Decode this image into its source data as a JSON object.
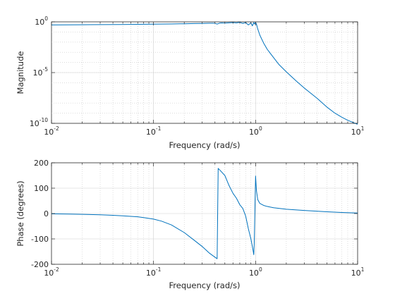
{
  "chart_data": [
    {
      "type": "line",
      "xlabel": "Frequency (rad/s)",
      "ylabel": "Magnitude",
      "xscale": "log",
      "yscale": "log",
      "xlim": [
        0.01,
        10
      ],
      "ylim": [
        1e-10,
        1
      ],
      "xticks": [
        {
          "base": "10",
          "exp": "-2"
        },
        {
          "base": "10",
          "exp": "-1"
        },
        {
          "base": "10",
          "exp": "0"
        },
        {
          "base": "10",
          "exp": "1"
        }
      ],
      "yticks": [
        {
          "base": "10",
          "exp": "-10"
        },
        {
          "base": "10",
          "exp": "-5"
        },
        {
          "base": "10",
          "exp": "0"
        }
      ],
      "ytick_values": [
        1e-10,
        1e-05,
        1
      ],
      "grid": true,
      "color": "#0072bd",
      "series": [
        {
          "x": [
            0.01,
            0.02,
            0.05,
            0.1,
            0.15,
            0.2,
            0.25,
            0.3,
            0.35,
            0.4,
            0.42,
            0.44,
            0.46,
            0.5,
            0.55,
            0.6,
            0.65,
            0.7,
            0.75,
            0.8,
            0.85,
            0.9,
            0.93,
            0.96,
            0.98,
            1.0,
            1.02,
            1.05,
            1.1,
            1.2,
            1.3,
            1.5,
            1.7,
            2,
            2.5,
            3,
            4,
            5,
            6,
            7,
            8,
            10
          ],
          "y": [
            0.5,
            0.52,
            0.55,
            0.6,
            0.62,
            0.65,
            0.68,
            0.7,
            0.72,
            0.72,
            0.6,
            0.72,
            0.78,
            0.75,
            0.8,
            0.85,
            0.78,
            0.9,
            0.7,
            0.85,
            0.5,
            0.8,
            0.4,
            0.85,
            0.6,
            0.9,
            0.6,
            0.2,
            0.05,
            0.008,
            0.002,
            0.0003,
            6e-05,
            1.2e-05,
            1.5e-06,
            3e-07,
            3e-08,
            4e-09,
            1e-09,
            4e-10,
            2e-10,
            8e-11
          ]
        }
      ]
    },
    {
      "type": "line",
      "xlabel": "Frequency (rad/s)",
      "ylabel": "Phase (degrees)",
      "xscale": "log",
      "xlim": [
        0.01,
        10
      ],
      "ylim": [
        -200,
        200
      ],
      "xticks": [
        {
          "base": "10",
          "exp": "-2"
        },
        {
          "base": "10",
          "exp": "-1"
        },
        {
          "base": "10",
          "exp": "0"
        },
        {
          "base": "10",
          "exp": "1"
        }
      ],
      "yticks": [
        "-200",
        "-100",
        "0",
        "100",
        "200"
      ],
      "ytick_values": [
        -200,
        -100,
        0,
        100,
        200
      ],
      "grid": true,
      "color": "#0072bd",
      "series": [
        {
          "x": [
            0.01,
            0.015,
            0.02,
            0.03,
            0.04,
            0.05,
            0.06,
            0.07,
            0.08,
            0.1,
            0.12,
            0.15,
            0.2,
            0.25,
            0.3,
            0.35,
            0.4,
            0.42,
            0.425,
            0.43,
            0.45,
            0.5,
            0.55,
            0.6,
            0.65,
            0.7,
            0.75,
            0.8,
            0.85,
            0.9,
            0.94,
            0.96,
            0.97,
            0.98,
            0.99,
            1.0,
            1.02,
            1.05,
            1.1,
            1.2,
            1.3,
            1.5,
            2,
            3,
            5,
            7,
            10
          ],
          "y": [
            -1,
            -2,
            -3,
            -5,
            -7,
            -9,
            -11,
            -13,
            -16,
            -22,
            -30,
            -45,
            -75,
            -105,
            -130,
            -155,
            -172,
            -178,
            0,
            178,
            170,
            150,
            110,
            80,
            60,
            35,
            20,
            -10,
            -60,
            -100,
            -140,
            -162,
            -120,
            -30,
            60,
            148,
            90,
            55,
            40,
            32,
            28,
            23,
            17,
            12,
            7,
            4,
            2
          ]
        }
      ]
    }
  ]
}
